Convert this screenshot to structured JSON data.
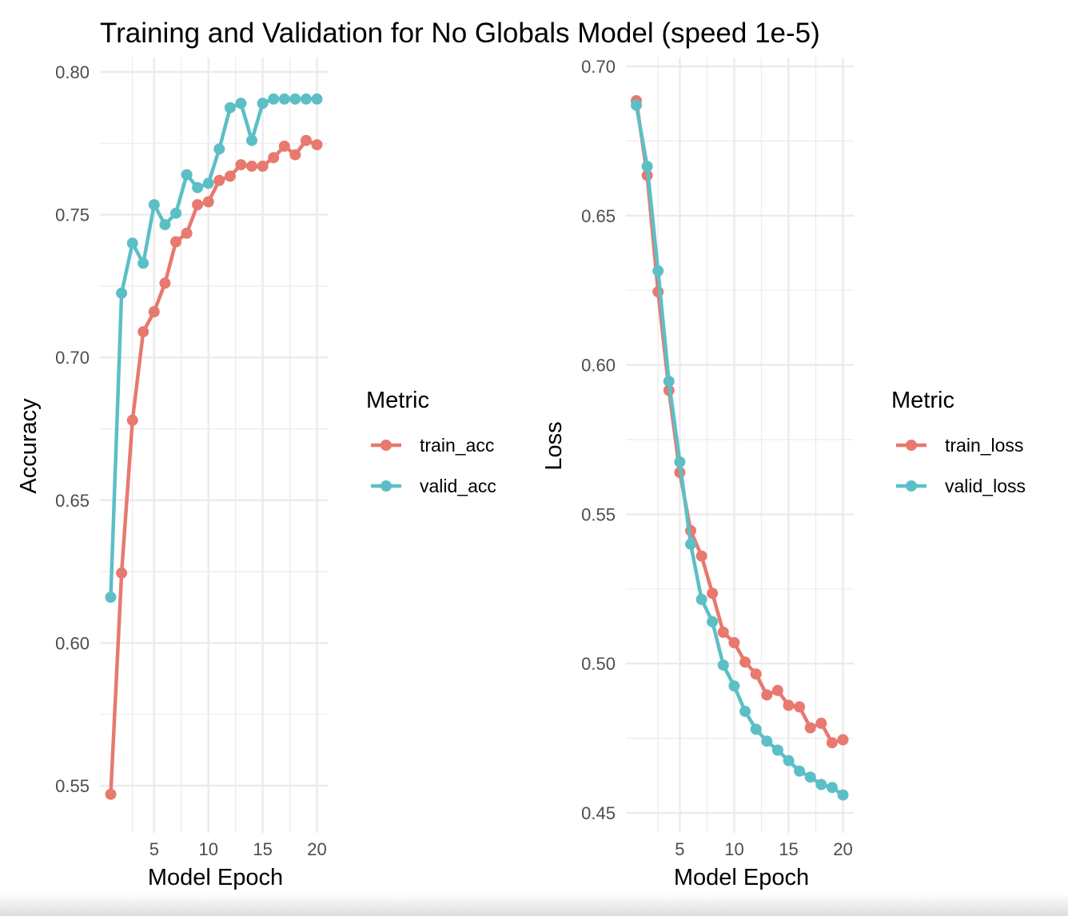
{
  "title": "Training and Validation for No Globals Model (speed 1e-5)",
  "colors": {
    "train": "#E7796F",
    "valid": "#5CBFC6",
    "grid": "#ebebeb"
  },
  "chart_data": [
    {
      "type": "line",
      "xlabel": "Model Epoch",
      "ylabel": "Accuracy",
      "xlim": [
        1,
        20
      ],
      "ylim": [
        0.54,
        0.8
      ],
      "x_ticks": [
        5,
        10,
        15,
        20
      ],
      "y_ticks": [
        0.55,
        0.6,
        0.65,
        0.7,
        0.75,
        0.8
      ],
      "y_tick_labels": [
        "0.55",
        "0.60",
        "0.65",
        "0.70",
        "0.75",
        "0.80"
      ],
      "legend_title": "Metric",
      "x": [
        1,
        2,
        3,
        4,
        5,
        6,
        7,
        8,
        9,
        10,
        11,
        12,
        13,
        14,
        15,
        16,
        17,
        18,
        19,
        20
      ],
      "series": [
        {
          "name": "train_acc",
          "color": "#E7796F",
          "values": [
            0.547,
            0.6245,
            0.678,
            0.709,
            0.716,
            0.726,
            0.7405,
            0.7435,
            0.7535,
            0.7545,
            0.762,
            0.7635,
            0.7675,
            0.767,
            0.767,
            0.77,
            0.774,
            0.771,
            0.776,
            0.7745
          ]
        },
        {
          "name": "valid_acc",
          "color": "#5CBFC6",
          "values": [
            0.616,
            0.7225,
            0.74,
            0.733,
            0.7535,
            0.7465,
            0.7505,
            0.764,
            0.7595,
            0.761,
            0.773,
            0.7875,
            0.789,
            0.776,
            0.789,
            0.7905,
            0.7905,
            0.7905,
            0.7905,
            0.7905
          ]
        }
      ]
    },
    {
      "type": "line",
      "xlabel": "Model Epoch",
      "ylabel": "Loss",
      "xlim": [
        1,
        20
      ],
      "ylim": [
        0.45,
        0.7
      ],
      "x_ticks": [
        5,
        10,
        15,
        20
      ],
      "y_ticks": [
        0.45,
        0.5,
        0.55,
        0.6,
        0.65,
        0.7
      ],
      "y_tick_labels": [
        "0.45",
        "0.50",
        "0.55",
        "0.60",
        "0.65",
        "0.70"
      ],
      "legend_title": "Metric",
      "x": [
        1,
        2,
        3,
        4,
        5,
        6,
        7,
        8,
        9,
        10,
        11,
        12,
        13,
        14,
        15,
        16,
        17,
        18,
        19,
        20
      ],
      "series": [
        {
          "name": "train_loss",
          "color": "#E7796F",
          "values": [
            0.6885,
            0.6635,
            0.6245,
            0.5915,
            0.564,
            0.5445,
            0.536,
            0.5235,
            0.5105,
            0.507,
            0.5005,
            0.4965,
            0.4895,
            0.491,
            0.486,
            0.4855,
            0.4785,
            0.48,
            0.4735,
            0.4745
          ]
        },
        {
          "name": "valid_loss",
          "color": "#5CBFC6",
          "values": [
            0.687,
            0.6665,
            0.6315,
            0.5945,
            0.5675,
            0.54,
            0.5215,
            0.514,
            0.4995,
            0.4925,
            0.484,
            0.478,
            0.474,
            0.471,
            0.4675,
            0.464,
            0.462,
            0.4595,
            0.4585,
            0.456
          ]
        }
      ]
    }
  ]
}
